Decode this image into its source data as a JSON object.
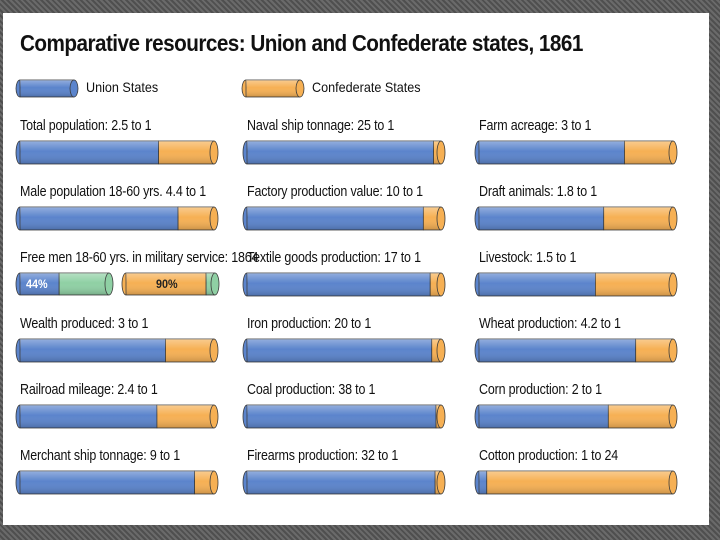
{
  "chart_data": {
    "type": "bar",
    "title": "Comparative resources: Union and Confederate states, 1861",
    "legend": [
      {
        "name": "Union States",
        "color": "#5b84cc"
      },
      {
        "name": "Confederate States",
        "color": "#f6b054"
      }
    ],
    "colors": {
      "union": "#5b84cc",
      "confederate": "#f6b054",
      "military": "#8fd0a4"
    },
    "columns": [
      [
        {
          "label": "Total population: 2.5 to 1",
          "type": "ratio",
          "union": 2.5,
          "confederate": 1
        },
        {
          "label": "Male population 18-60 yrs. 4.4 to 1",
          "type": "ratio",
          "union": 4.4,
          "confederate": 1
        },
        {
          "label": "Free men 18-60 yrs. in military service: 1864",
          "type": "percent",
          "union_pct": 44,
          "confederate_pct": 90,
          "union_text": "44%",
          "confederate_text": "90%"
        },
        {
          "label": "Wealth produced: 3 to 1",
          "type": "ratio",
          "union": 3,
          "confederate": 1
        },
        {
          "label": "Railroad mileage: 2.4 to 1",
          "type": "ratio",
          "union": 2.4,
          "confederate": 1
        },
        {
          "label": "Merchant ship tonnage: 9 to 1",
          "type": "ratio",
          "union": 9,
          "confederate": 1
        }
      ],
      [
        {
          "label": "Naval ship tonnage: 25 to 1",
          "type": "ratio",
          "union": 25,
          "confederate": 1
        },
        {
          "label": "Factory production value: 10 to 1",
          "type": "ratio",
          "union": 10,
          "confederate": 1
        },
        {
          "label": "Textile goods production: 17 to 1",
          "type": "ratio",
          "union": 17,
          "confederate": 1
        },
        {
          "label": "Iron production: 20 to 1",
          "type": "ratio",
          "union": 20,
          "confederate": 1
        },
        {
          "label": "Coal production: 38 to 1",
          "type": "ratio",
          "union": 38,
          "confederate": 1
        },
        {
          "label": "Firearms production: 32 to 1",
          "type": "ratio",
          "union": 32,
          "confederate": 1
        }
      ],
      [
        {
          "label": "Farm acreage: 3 to 1",
          "type": "ratio",
          "union": 3,
          "confederate": 1
        },
        {
          "label": "Draft animals: 1.8 to 1",
          "type": "ratio",
          "union": 1.8,
          "confederate": 1
        },
        {
          "label": "Livestock: 1.5 to 1",
          "type": "ratio",
          "union": 1.5,
          "confederate": 1
        },
        {
          "label": "Wheat production: 4.2 to 1",
          "type": "ratio",
          "union": 4.2,
          "confederate": 1
        },
        {
          "label": "Corn production: 2 to 1",
          "type": "ratio",
          "union": 2,
          "confederate": 1
        },
        {
          "label": "Cotton production: 1 to 24",
          "type": "ratio",
          "union": 1,
          "confederate": 24
        }
      ]
    ]
  }
}
